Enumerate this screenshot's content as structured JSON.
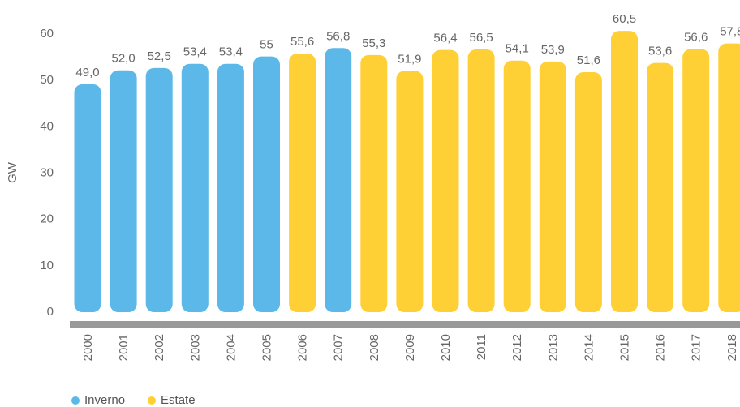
{
  "chart_data": {
    "type": "bar",
    "ylabel": "GW",
    "ylim": [
      0,
      60
    ],
    "yticks": [
      0,
      10,
      20,
      30,
      40,
      50,
      60
    ],
    "grid": false,
    "legend_position": "bottom-left",
    "categories": [
      "2000",
      "2001",
      "2002",
      "2003",
      "2004",
      "2005",
      "2006",
      "2007",
      "2008",
      "2009",
      "2010",
      "2011",
      "2012",
      "2013",
      "2014",
      "2015",
      "2016",
      "2017",
      "2018"
    ],
    "values": [
      49.0,
      52.0,
      52.5,
      53.4,
      53.4,
      55,
      55.6,
      56.8,
      55.3,
      51.9,
      56.4,
      56.5,
      54.1,
      53.9,
      51.6,
      60.5,
      53.6,
      56.6,
      57.8
    ],
    "value_labels": [
      "49,0",
      "52,0",
      "52,5",
      "53,4",
      "53,4",
      "55",
      "55,6",
      "56,8",
      "55,3",
      "51,9",
      "56,4",
      "56,5",
      "54,1",
      "53,9",
      "51,6",
      "60,5",
      "53,6",
      "56,6",
      "57,8"
    ],
    "peak_season": [
      "Inverno",
      "Inverno",
      "Inverno",
      "Inverno",
      "Inverno",
      "Inverno",
      "Estate",
      "Inverno",
      "Estate",
      "Estate",
      "Estate",
      "Estate",
      "Estate",
      "Estate",
      "Estate",
      "Estate",
      "Estate",
      "Estate",
      "Estate"
    ],
    "series": [
      {
        "name": "Inverno",
        "color": "#5BB8E8"
      },
      {
        "name": "Estate",
        "color": "#FFD035"
      }
    ]
  },
  "legend": {
    "items": [
      {
        "label": "Inverno",
        "color": "#5BB8E8"
      },
      {
        "label": "Estate",
        "color": "#FFD035"
      }
    ]
  },
  "colors": {
    "baseline": "#999999",
    "text": "#666666"
  }
}
